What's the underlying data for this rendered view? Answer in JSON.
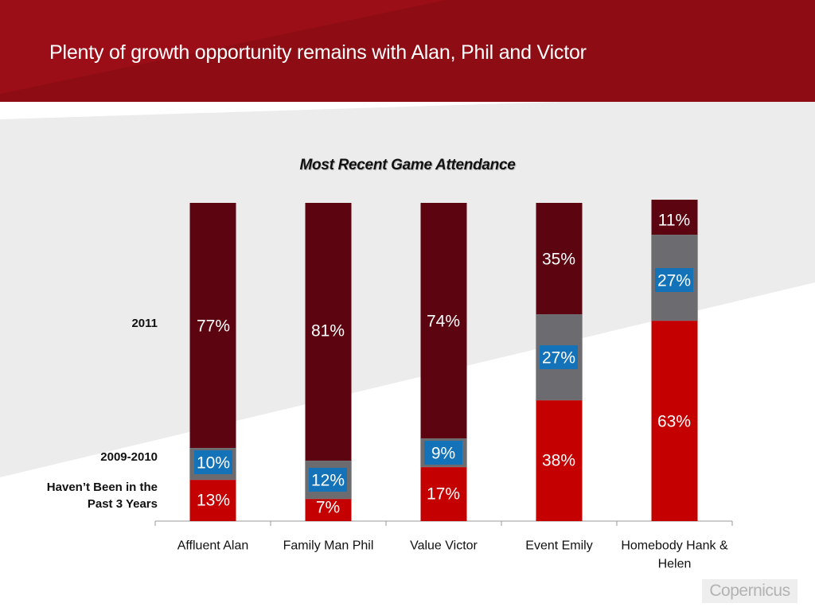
{
  "slide": {
    "title": "Plenty of growth opportunity remains with Alan, Phil and Victor",
    "logo": "Copernicus"
  },
  "colors": {
    "banner": "#8e0d14",
    "series_2011": "#5c0510",
    "series_2009_2010": "#6b6b70",
    "series_not_been": "#c40000",
    "label_box": "#1473b8"
  },
  "chart_data": {
    "type": "bar",
    "stacked": true,
    "title": "Most Recent Game Attendance",
    "categories": [
      "Affluent Alan",
      "Family Man Phil",
      "Value Victor",
      "Event Emily",
      "Homebody Hank & Helen"
    ],
    "series": [
      {
        "name": "Haven’t Been in the Past 3 Years",
        "values": [
          13,
          7,
          17,
          38,
          63
        ],
        "labels": [
          "13%",
          "7%",
          "17%",
          "38%",
          "63%"
        ]
      },
      {
        "name": "2009-2010",
        "values": [
          10,
          12,
          9,
          27,
          27
        ],
        "labels": [
          "10%",
          "12%",
          "9%",
          "27%",
          "27%"
        ]
      },
      {
        "name": "2011",
        "values": [
          77,
          81,
          74,
          35,
          11
        ],
        "labels": [
          "77%",
          "81%",
          "74%",
          "35%",
          "11%"
        ]
      }
    ],
    "ylim": [
      0,
      100
    ],
    "grid": false
  },
  "row_labels": {
    "y2011": "2011",
    "y2009_2010": "2009-2010",
    "never_line1": "Haven’t Been in the",
    "never_line2": "Past 3 Years"
  }
}
